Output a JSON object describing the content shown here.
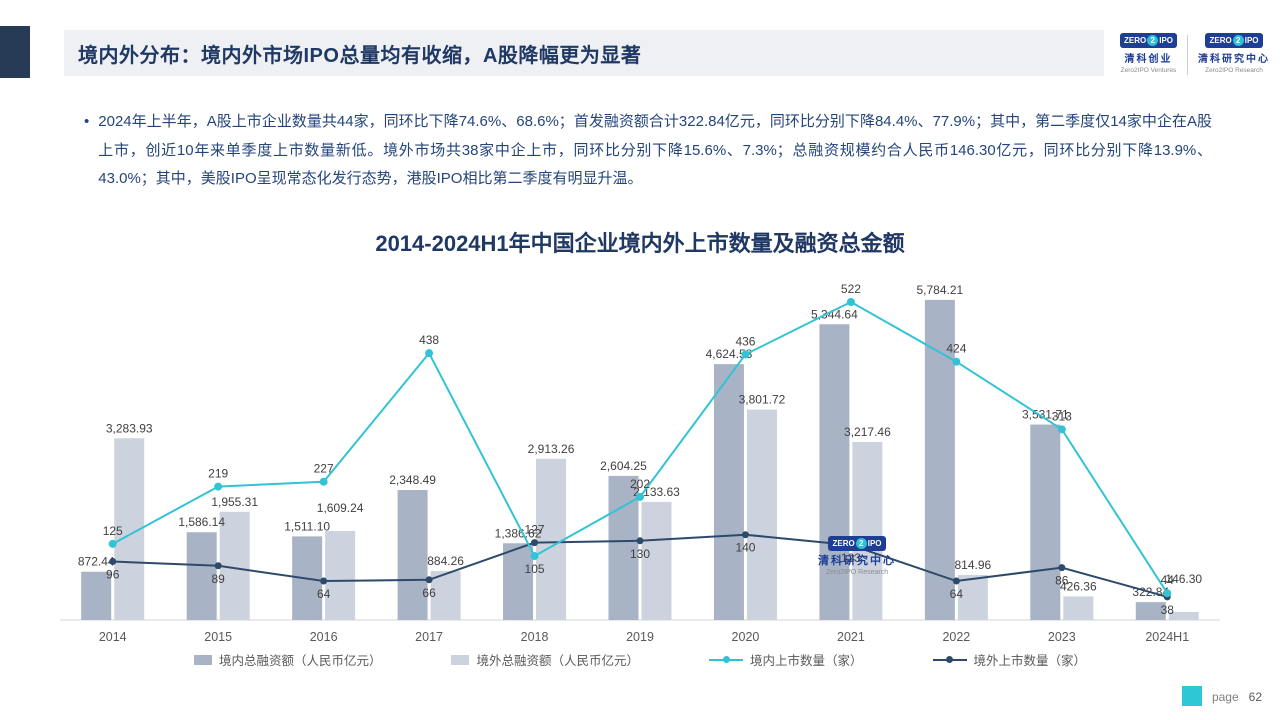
{
  "header": {
    "title": "境内外分布：境内外市场IPO总量均有收缩，A股降幅更为显著",
    "logos": [
      {
        "mark_left": "ZERO",
        "mark_mid": "2",
        "mark_right": "IPO",
        "cn": "清科创业",
        "en": "Zero2IPO Ventures"
      },
      {
        "mark_left": "ZERO",
        "mark_mid": "2",
        "mark_right": "IPO",
        "cn": "清科研究中心",
        "en": "Zero2IPO Research"
      }
    ]
  },
  "body": {
    "bullet_marker": "•",
    "bullet": "2024年上半年，A股上市企业数量共44家，同环比下降74.6%、68.6%；首发融资额合计322.84亿元，同环比分别下降84.4%、77.9%；其中，第二季度仅14家中企在A股上市，创近10年来单季度上市数量新低。境外市场共38家中企上市，同环比分别下降15.6%、7.3%；总融资规模约合人民币146.30亿元，同环比分别下降13.9%、43.0%；其中，美股IPO呈现常态化发行态势，港股IPO相比第二季度有明显升温。"
  },
  "chart_data": {
    "type": "combo-bar-line",
    "title": "2014-2024H1年中国企业境内外上市数量及融资总金额",
    "categories": [
      "2014",
      "2015",
      "2016",
      "2017",
      "2018",
      "2019",
      "2020",
      "2021",
      "2022",
      "2023",
      "2024H1"
    ],
    "series": [
      {
        "name": "境内总融资额（人民币亿元）",
        "type": "bar",
        "color": "#a9b3c6",
        "values": [
          872.44,
          1586.14,
          1511.1,
          2348.49,
          1386.62,
          2604.25,
          4624.58,
          5344.64,
          5784.21,
          3531.71,
          322.84
        ],
        "labels": [
          "872.44",
          "1,586.14",
          "1,511.10",
          "2,348.49",
          "1,386.62",
          "2,604.25",
          "4,624.58",
          "5,344.64",
          "5,784.21",
          "3,531.71",
          "322.84"
        ]
      },
      {
        "name": "境外总融资额（人民币亿元）",
        "type": "bar",
        "color": "#ccd3de",
        "values": [
          3283.93,
          1955.31,
          1609.24,
          884.26,
          2913.26,
          2133.63,
          3801.72,
          3217.46,
          814.96,
          426.36,
          146.3
        ],
        "labels": [
          "3,283.93",
          "1,955.31",
          "1,609.24",
          "884.26",
          "2,913.26",
          "2,133.63",
          "3,801.72",
          "3,217.46",
          "814.96",
          "426.36",
          "146.30"
        ]
      },
      {
        "name": "境内上市数量（家）",
        "type": "line",
        "color": "#32c3d5",
        "values": [
          125,
          219,
          227,
          438,
          105,
          202,
          436,
          522,
          424,
          313,
          44
        ],
        "labels": [
          "125",
          "219",
          "227",
          "438",
          "105",
          "202",
          "436",
          "522",
          "424",
          "313",
          "44"
        ]
      },
      {
        "name": "境外上市数量（家）",
        "type": "line",
        "color": "#2e4a6b",
        "values": [
          96,
          89,
          64,
          66,
          127,
          130,
          140,
          123,
          64,
          86,
          38
        ],
        "labels": [
          "96",
          "89",
          "64",
          "66",
          "127",
          "130",
          "140",
          "123",
          "64",
          "86",
          "38"
        ]
      }
    ],
    "bar_axis_max": 6000,
    "line_axis_max": 545,
    "grid": false,
    "legend_position": "bottom"
  },
  "watermark": {
    "mark_left": "ZERO",
    "mark_mid": "2",
    "mark_right": "IPO",
    "cn": "清科研究中心",
    "en": "Zero2IPO Research"
  },
  "footer": {
    "page_label": "page",
    "page_number": "62"
  }
}
